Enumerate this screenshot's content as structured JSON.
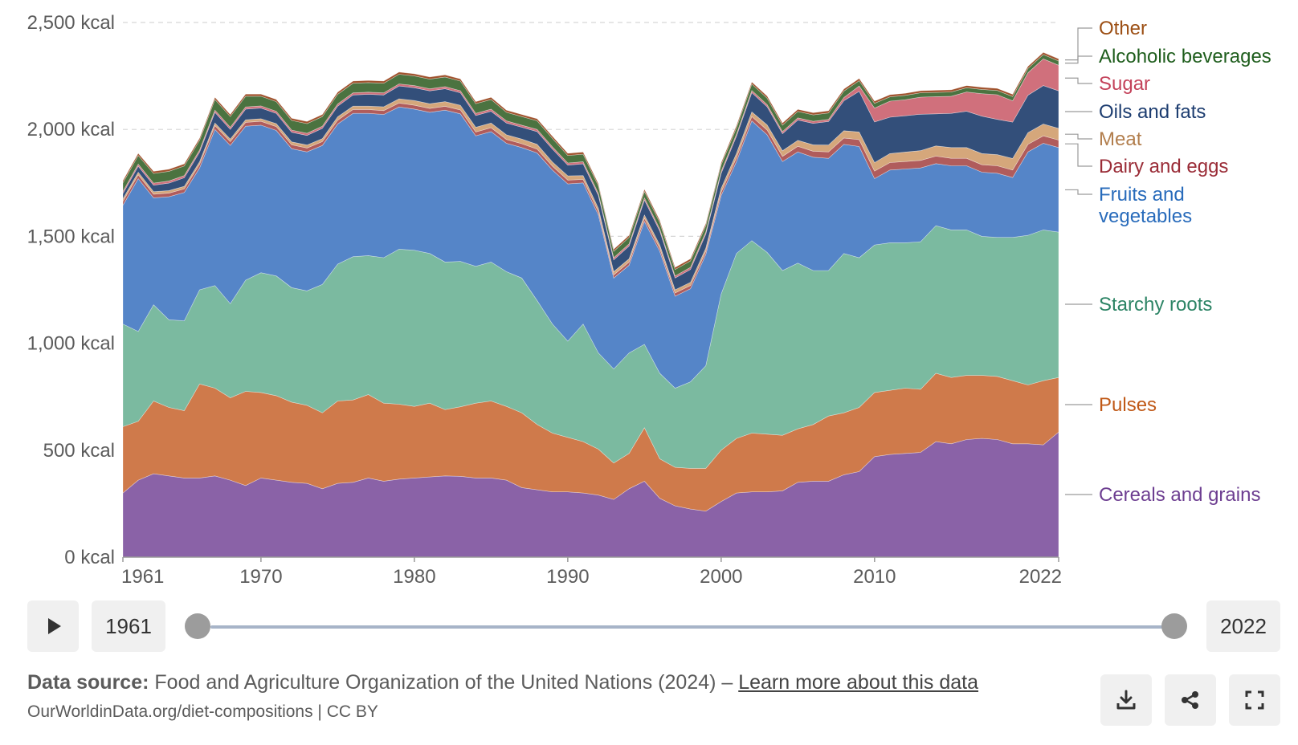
{
  "chart_data": {
    "type": "area",
    "stacked": true,
    "x": [
      1961,
      1962,
      1963,
      1964,
      1965,
      1966,
      1967,
      1968,
      1969,
      1970,
      1971,
      1972,
      1973,
      1974,
      1975,
      1976,
      1977,
      1978,
      1979,
      1980,
      1981,
      1982,
      1983,
      1984,
      1985,
      1986,
      1987,
      1988,
      1989,
      1990,
      1991,
      1992,
      1993,
      1994,
      1995,
      1996,
      1997,
      1998,
      1999,
      2000,
      2001,
      2002,
      2003,
      2004,
      2005,
      2006,
      2007,
      2008,
      2009,
      2010,
      2011,
      2012,
      2013,
      2014,
      2015,
      2016,
      2017,
      2018,
      2019,
      2020,
      2021,
      2022
    ],
    "x_ticks": [
      "1961",
      "1970",
      "1980",
      "1990",
      "2000",
      "2010",
      "2022"
    ],
    "x_tick_values": [
      1961,
      1970,
      1980,
      1990,
      2000,
      2010,
      2022
    ],
    "y_ticks": [
      "0 kcal",
      "500 kcal",
      "1,000 kcal",
      "1,500 kcal",
      "2,000 kcal",
      "2,500 kcal"
    ],
    "y_tick_values": [
      0,
      500,
      1000,
      1500,
      2000,
      2500
    ],
    "ylim": [
      0,
      2500
    ],
    "grid": "horizontal dashed",
    "legend_placement": "right, inline labels",
    "series": [
      {
        "name": "Cereals and grains",
        "color": "#8a62a7",
        "label_color": "#6d3e91",
        "values": [
          300,
          360,
          390,
          380,
          370,
          370,
          380,
          360,
          335,
          370,
          360,
          350,
          345,
          320,
          345,
          350,
          370,
          355,
          365,
          370,
          375,
          380,
          378,
          370,
          370,
          360,
          325,
          315,
          305,
          305,
          300,
          290,
          270,
          320,
          355,
          275,
          240,
          225,
          215,
          260,
          300,
          305,
          305,
          310,
          350,
          355,
          355,
          385,
          400,
          470,
          480,
          485,
          490,
          540,
          530,
          550,
          555,
          550,
          530,
          530,
          525,
          585
        ]
      },
      {
        "name": "Pulses",
        "color": "#cf7a4b",
        "label_color": "#c05917",
        "values": [
          310,
          275,
          340,
          320,
          315,
          440,
          410,
          385,
          440,
          400,
          395,
          375,
          365,
          355,
          385,
          385,
          390,
          365,
          350,
          335,
          345,
          310,
          325,
          350,
          360,
          345,
          350,
          305,
          275,
          255,
          240,
          215,
          170,
          165,
          250,
          185,
          180,
          190,
          200,
          240,
          255,
          275,
          270,
          260,
          250,
          265,
          305,
          290,
          300,
          300,
          300,
          305,
          295,
          320,
          310,
          300,
          295,
          295,
          295,
          275,
          300,
          255
        ]
      },
      {
        "name": "Starchy roots",
        "color": "#7bbaa0",
        "label_color": "#2c8465",
        "values": [
          480,
          420,
          450,
          410,
          420,
          440,
          480,
          440,
          520,
          560,
          560,
          535,
          535,
          600,
          640,
          670,
          650,
          680,
          725,
          730,
          700,
          690,
          680,
          640,
          650,
          630,
          630,
          580,
          510,
          450,
          550,
          450,
          440,
          470,
          390,
          400,
          370,
          405,
          480,
          730,
          865,
          900,
          850,
          770,
          775,
          720,
          680,
          745,
          700,
          690,
          690,
          680,
          690,
          690,
          690,
          680,
          650,
          650,
          670,
          700,
          705,
          680
        ]
      },
      {
        "name": "Fruits and vegetables",
        "color": "#5585c8",
        "label_color": "#286bbb",
        "values": [
          555,
          715,
          500,
          575,
          600,
          570,
          730,
          740,
          720,
          690,
          680,
          650,
          650,
          650,
          655,
          670,
          665,
          670,
          665,
          660,
          660,
          710,
          690,
          610,
          610,
          600,
          610,
          690,
          720,
          735,
          660,
          645,
          425,
          410,
          575,
          570,
          430,
          435,
          520,
          460,
          430,
          560,
          550,
          510,
          520,
          530,
          525,
          510,
          520,
          310,
          340,
          345,
          345,
          290,
          300,
          300,
          300,
          300,
          280,
          390,
          405,
          395
        ]
      },
      {
        "name": "Dairy and eggs",
        "color": "#b05c5c",
        "label_color": "#9a2c37",
        "values": [
          18,
          18,
          17,
          17,
          17,
          17,
          18,
          18,
          18,
          18,
          18,
          18,
          18,
          18,
          18,
          18,
          18,
          18,
          18,
          18,
          18,
          18,
          18,
          18,
          18,
          18,
          18,
          18,
          18,
          18,
          16,
          15,
          15,
          15,
          15,
          15,
          15,
          15,
          15,
          16,
          18,
          20,
          22,
          24,
          26,
          28,
          30,
          30,
          32,
          35,
          35,
          35,
          35,
          35,
          35,
          35,
          35,
          35,
          35,
          35,
          35,
          35
        ]
      },
      {
        "name": "Meat",
        "color": "#d5a77b",
        "label_color": "#b27e4d",
        "values": [
          12,
          12,
          12,
          12,
          12,
          12,
          12,
          12,
          12,
          12,
          14,
          14,
          14,
          14,
          16,
          16,
          16,
          18,
          20,
          22,
          22,
          22,
          22,
          22,
          22,
          22,
          22,
          22,
          20,
          20,
          18,
          16,
          15,
          15,
          15,
          15,
          15,
          15,
          15,
          18,
          20,
          22,
          24,
          26,
          28,
          30,
          32,
          34,
          36,
          40,
          42,
          44,
          46,
          48,
          50,
          50,
          52,
          52,
          54,
          55,
          55,
          55
        ]
      },
      {
        "name": "Oils and fats",
        "color": "#334f7a",
        "label_color": "#1d3d70",
        "values": [
          25,
          28,
          30,
          35,
          40,
          45,
          50,
          45,
          50,
          50,
          48,
          45,
          45,
          48,
          50,
          52,
          55,
          55,
          60,
          60,
          60,
          60,
          58,
          55,
          55,
          55,
          55,
          60,
          60,
          50,
          55,
          60,
          55,
          60,
          70,
          65,
          55,
          60,
          65,
          70,
          80,
          90,
          85,
          80,
          95,
          100,
          110,
          140,
          190,
          190,
          170,
          170,
          170,
          150,
          160,
          170,
          175,
          165,
          170,
          175,
          180,
          175
        ]
      },
      {
        "name": "Sugar",
        "color": "#d0707c",
        "label_color": "#c4435b",
        "values": [
          10,
          10,
          10,
          10,
          10,
          10,
          10,
          10,
          10,
          10,
          10,
          10,
          10,
          10,
          10,
          10,
          10,
          10,
          10,
          10,
          10,
          10,
          10,
          10,
          10,
          10,
          10,
          10,
          10,
          10,
          10,
          10,
          10,
          10,
          10,
          10,
          10,
          10,
          10,
          10,
          10,
          10,
          10,
          10,
          10,
          10,
          10,
          15,
          25,
          65,
          75,
          75,
          80,
          80,
          80,
          90,
          105,
          115,
          100,
          105,
          125,
          120
        ]
      },
      {
        "name": "Alcoholic beverages",
        "color": "#4b7340",
        "label_color": "#1e5d1c",
        "values": [
          40,
          40,
          45,
          45,
          45,
          45,
          50,
          50,
          50,
          45,
          45,
          45,
          45,
          45,
          45,
          45,
          45,
          45,
          45,
          45,
          45,
          45,
          45,
          45,
          45,
          40,
          40,
          40,
          40,
          35,
          35,
          35,
          30,
          30,
          30,
          30,
          30,
          30,
          30,
          30,
          30,
          30,
          30,
          30,
          30,
          30,
          30,
          30,
          25,
          22,
          20,
          20,
          20,
          20,
          20,
          20,
          20,
          20,
          20,
          20,
          20,
          20
        ]
      },
      {
        "name": "Other",
        "color": "#a0522d",
        "label_color": "#9c4f14",
        "values": [
          10,
          10,
          10,
          10,
          10,
          10,
          10,
          10,
          10,
          10,
          10,
          10,
          10,
          10,
          10,
          10,
          10,
          10,
          10,
          10,
          10,
          10,
          10,
          10,
          10,
          10,
          10,
          10,
          10,
          10,
          10,
          10,
          10,
          10,
          10,
          10,
          10,
          10,
          10,
          10,
          10,
          10,
          10,
          10,
          10,
          10,
          10,
          10,
          10,
          10,
          10,
          10,
          10,
          10,
          10,
          10,
          10,
          10,
          10,
          10,
          10,
          10
        ]
      }
    ],
    "legend_order_top_to_bottom": [
      "Other",
      "Alcoholic beverages",
      "Sugar",
      "Oils and fats",
      "Meat",
      "Dairy and eggs",
      "Fruits and vegetables",
      "Starchy roots",
      "Pulses",
      "Cereals and grains"
    ],
    "fruits_label_lines": [
      "Fruits and",
      "vegetables"
    ]
  },
  "controls": {
    "play_icon": "play-icon",
    "start_year": "1961",
    "end_year": "2022",
    "slider_start_fraction": 0,
    "slider_end_fraction": 1
  },
  "footer": {
    "source_label": "Data source:",
    "source_text": " Food and Agriculture Organization of the United Nations (2024) – ",
    "source_link": "Learn more about this data",
    "credit": "OurWorldinData.org/diet-compositions | CC BY"
  },
  "actions": {
    "download_icon": "download-icon",
    "share_icon": "share-icon",
    "fullscreen_icon": "fullscreen-icon"
  }
}
